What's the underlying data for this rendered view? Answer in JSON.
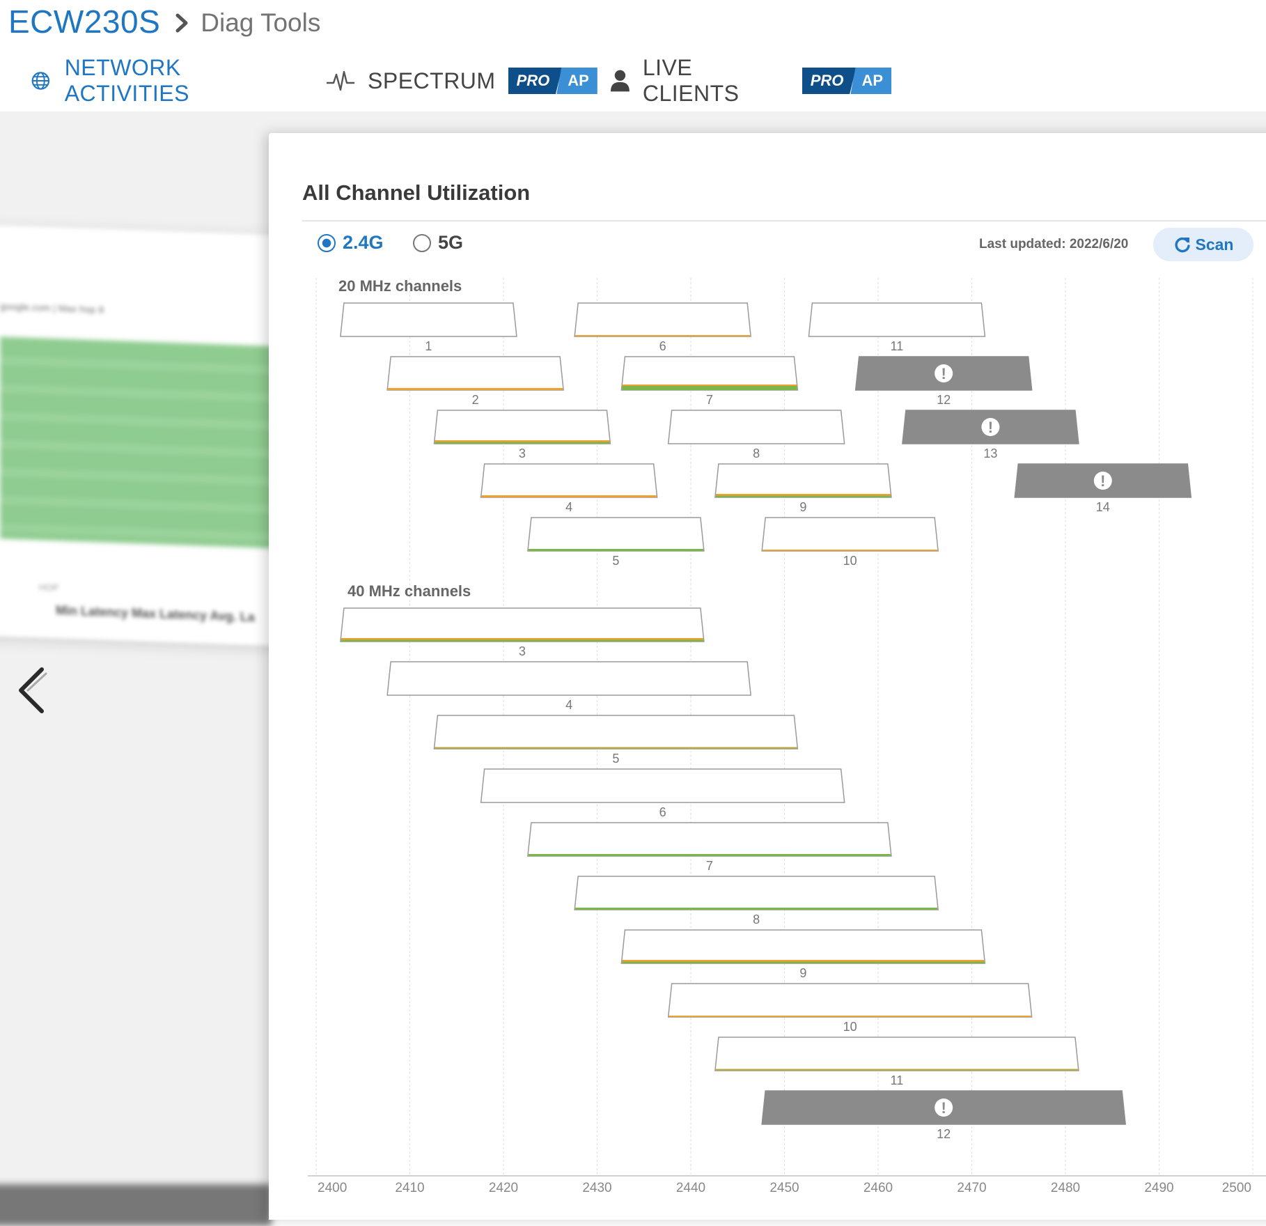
{
  "breadcrumb": {
    "device": "ECW230S",
    "page": "Diag Tools"
  },
  "tabs": [
    {
      "label": "NETWORK ACTIVITIES",
      "icon": "globe-icon",
      "active": true
    },
    {
      "label": "SPECTRUM",
      "icon": "pulse-icon",
      "badge_pro": "PRO",
      "badge_ap": "AP"
    },
    {
      "label": "LIVE CLIENTS",
      "icon": "user-icon",
      "badge_pro": "PRO",
      "badge_ap": "AP"
    }
  ],
  "background": {
    "text_row": "google.com | Max hop 8",
    "small_label": "HOP",
    "headers": "Min Latency    Max Latency    Avg. La"
  },
  "panel": {
    "title": "All Channel Utilization",
    "bands": [
      {
        "label": "2.4G",
        "selected": true
      },
      {
        "label": "5G",
        "selected": false
      }
    ],
    "last_updated": "Last updated: 2022/6/20",
    "scan_label": "Scan"
  },
  "chart_data": {
    "type": "channel-map",
    "x_axis": {
      "unit": "MHz",
      "range": [
        2400,
        2500
      ],
      "ticks": [
        2400,
        2410,
        2420,
        2430,
        2440,
        2450,
        2460,
        2470,
        2480,
        2490,
        2500
      ]
    },
    "colors": {
      "frame": "#9a9a9a",
      "unavailable": "#8b8b8b",
      "low": "#7ab648",
      "medium": "#f0a030",
      "grid": "#e2e2e2"
    },
    "sections": [
      {
        "label": "20 MHz channels",
        "channels": [
          {
            "channel": "1",
            "center": 2412,
            "width": 20,
            "row": 0,
            "status": "none"
          },
          {
            "channel": "6",
            "center": 2437,
            "width": 20,
            "row": 0,
            "status": "orange-thin"
          },
          {
            "channel": "11",
            "center": 2462,
            "width": 20,
            "row": 0,
            "status": "none"
          },
          {
            "channel": "2",
            "center": 2417,
            "width": 20,
            "row": 1,
            "status": "orange"
          },
          {
            "channel": "7",
            "center": 2442,
            "width": 20,
            "row": 1,
            "status": "green-thick"
          },
          {
            "channel": "12",
            "center": 2467,
            "width": 20,
            "row": 1,
            "status": "unavailable"
          },
          {
            "channel": "3",
            "center": 2422,
            "width": 20,
            "row": 2,
            "status": "orange-green"
          },
          {
            "channel": "8",
            "center": 2447,
            "width": 20,
            "row": 2,
            "status": "none"
          },
          {
            "channel": "13",
            "center": 2472,
            "width": 20,
            "row": 2,
            "status": "unavailable"
          },
          {
            "channel": "4",
            "center": 2427,
            "width": 20,
            "row": 3,
            "status": "orange"
          },
          {
            "channel": "9",
            "center": 2452,
            "width": 20,
            "row": 3,
            "status": "orange-green"
          },
          {
            "channel": "14",
            "center": 2484,
            "width": 20,
            "row": 3,
            "status": "unavailable"
          },
          {
            "channel": "5",
            "center": 2432,
            "width": 20,
            "row": 4,
            "status": "green"
          },
          {
            "channel": "10",
            "center": 2457,
            "width": 20,
            "row": 4,
            "status": "orange-thin"
          }
        ]
      },
      {
        "label": "40 MHz channels",
        "channels": [
          {
            "channel": "3",
            "center": 2422,
            "width": 40,
            "row": 0,
            "status": "orange-green"
          },
          {
            "channel": "4",
            "center": 2427,
            "width": 40,
            "row": 1,
            "status": "none"
          },
          {
            "channel": "5",
            "center": 2432,
            "width": 40,
            "row": 2,
            "status": "olive"
          },
          {
            "channel": "6",
            "center": 2437,
            "width": 40,
            "row": 3,
            "status": "none"
          },
          {
            "channel": "7",
            "center": 2442,
            "width": 40,
            "row": 4,
            "status": "green"
          },
          {
            "channel": "8",
            "center": 2447,
            "width": 40,
            "row": 5,
            "status": "green"
          },
          {
            "channel": "9",
            "center": 2452,
            "width": 40,
            "row": 6,
            "status": "orange-green"
          },
          {
            "channel": "10",
            "center": 2457,
            "width": 40,
            "row": 7,
            "status": "orange-thin"
          },
          {
            "channel": "11",
            "center": 2462,
            "width": 40,
            "row": 8,
            "status": "olive"
          },
          {
            "channel": "12",
            "center": 2467,
            "width": 40,
            "row": 9,
            "status": "unavailable"
          }
        ]
      }
    ]
  }
}
